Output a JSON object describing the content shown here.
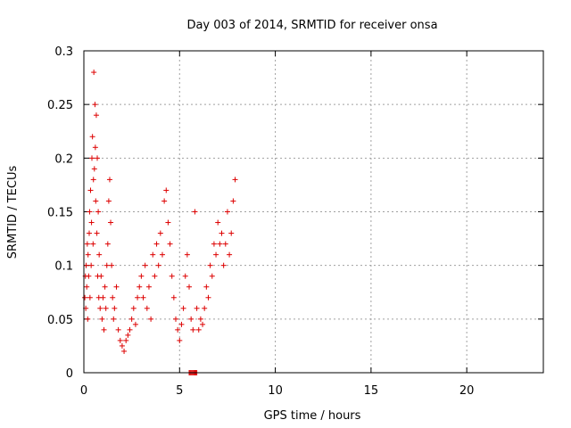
{
  "chart_data": {
    "type": "scatter",
    "title": "Day 003 of 2014, SRMTID for receiver onsa",
    "xlabel": "GPS time / hours",
    "ylabel": "SRMTID / TECUs",
    "xlim": [
      0,
      24
    ],
    "ylim": [
      0,
      0.3
    ],
    "xticks": [
      "0",
      "5",
      "10",
      "15",
      "20"
    ],
    "yticks": [
      "0",
      "0.05",
      "0.1",
      "0.15",
      "0.2",
      "0.25",
      "0.3"
    ],
    "grid": true,
    "marker": "plus",
    "color": "#dd0000",
    "series": [
      {
        "points": [
          [
            0.05,
            0.07
          ],
          [
            0.08,
            0.09
          ],
          [
            0.1,
            0.06
          ],
          [
            0.12,
            0.1
          ],
          [
            0.15,
            0.08
          ],
          [
            0.18,
            0.12
          ],
          [
            0.2,
            0.05
          ],
          [
            0.22,
            0.11
          ],
          [
            0.25,
            0.09
          ],
          [
            0.28,
            0.13
          ],
          [
            0.3,
            0.15
          ],
          [
            0.32,
            0.07
          ],
          [
            0.35,
            0.17
          ],
          [
            0.38,
            0.1
          ],
          [
            0.4,
            0.14
          ],
          [
            0.42,
            0.2
          ],
          [
            0.45,
            0.22
          ],
          [
            0.48,
            0.12
          ],
          [
            0.5,
            0.18
          ],
          [
            0.52,
            0.28
          ],
          [
            0.55,
            0.19
          ],
          [
            0.58,
            0.25
          ],
          [
            0.6,
            0.21
          ],
          [
            0.62,
            0.16
          ],
          [
            0.65,
            0.24
          ],
          [
            0.68,
            0.13
          ],
          [
            0.7,
            0.2
          ],
          [
            0.72,
            0.09
          ],
          [
            0.75,
            0.15
          ],
          [
            0.78,
            0.07
          ],
          [
            0.8,
            0.11
          ],
          [
            0.85,
            0.06
          ],
          [
            0.9,
            0.09
          ],
          [
            0.95,
            0.05
          ],
          [
            1.0,
            0.07
          ],
          [
            1.05,
            0.04
          ],
          [
            1.1,
            0.08
          ],
          [
            1.15,
            0.06
          ],
          [
            1.2,
            0.1
          ],
          [
            1.25,
            0.12
          ],
          [
            1.3,
            0.16
          ],
          [
            1.35,
            0.18
          ],
          [
            1.4,
            0.14
          ],
          [
            1.45,
            0.1
          ],
          [
            1.5,
            0.07
          ],
          [
            1.55,
            0.05
          ],
          [
            1.6,
            0.06
          ],
          [
            1.7,
            0.08
          ],
          [
            1.8,
            0.04
          ],
          [
            1.9,
            0.03
          ],
          [
            2.0,
            0.025
          ],
          [
            2.1,
            0.02
          ],
          [
            2.2,
            0.03
          ],
          [
            2.3,
            0.035
          ],
          [
            2.4,
            0.04
          ],
          [
            2.5,
            0.05
          ],
          [
            2.6,
            0.06
          ],
          [
            2.7,
            0.045
          ],
          [
            2.8,
            0.07
          ],
          [
            2.9,
            0.08
          ],
          [
            3.0,
            0.09
          ],
          [
            3.1,
            0.07
          ],
          [
            3.2,
            0.1
          ],
          [
            3.3,
            0.06
          ],
          [
            3.4,
            0.08
          ],
          [
            3.5,
            0.05
          ],
          [
            3.6,
            0.11
          ],
          [
            3.7,
            0.09
          ],
          [
            3.8,
            0.12
          ],
          [
            3.9,
            0.1
          ],
          [
            4.0,
            0.13
          ],
          [
            4.1,
            0.11
          ],
          [
            4.2,
            0.16
          ],
          [
            4.3,
            0.17
          ],
          [
            4.4,
            0.14
          ],
          [
            4.5,
            0.12
          ],
          [
            4.6,
            0.09
          ],
          [
            4.7,
            0.07
          ],
          [
            4.8,
            0.05
          ],
          [
            4.9,
            0.04
          ],
          [
            5.0,
            0.03
          ],
          [
            5.1,
            0.045
          ],
          [
            5.2,
            0.06
          ],
          [
            5.3,
            0.09
          ],
          [
            5.4,
            0.11
          ],
          [
            5.5,
            0.08
          ],
          [
            5.6,
            0.05
          ],
          [
            5.7,
            0.04
          ],
          [
            5.8,
            0.15
          ],
          [
            5.9,
            0.06
          ],
          [
            6.0,
            0.04
          ],
          [
            6.1,
            0.05
          ],
          [
            6.2,
            0.045
          ],
          [
            6.3,
            0.06
          ],
          [
            6.4,
            0.08
          ],
          [
            6.5,
            0.07
          ],
          [
            6.6,
            0.1
          ],
          [
            6.7,
            0.09
          ],
          [
            6.8,
            0.12
          ],
          [
            6.9,
            0.11
          ],
          [
            7.0,
            0.14
          ],
          [
            7.1,
            0.12
          ],
          [
            7.2,
            0.13
          ],
          [
            7.3,
            0.1
          ],
          [
            7.4,
            0.12
          ],
          [
            7.5,
            0.15
          ],
          [
            7.6,
            0.11
          ],
          [
            7.7,
            0.13
          ],
          [
            7.8,
            0.16
          ],
          [
            7.9,
            0.18
          ]
        ]
      }
    ],
    "zero_cluster": {
      "x_range": [
        5.5,
        5.9
      ],
      "y": 0
    }
  }
}
